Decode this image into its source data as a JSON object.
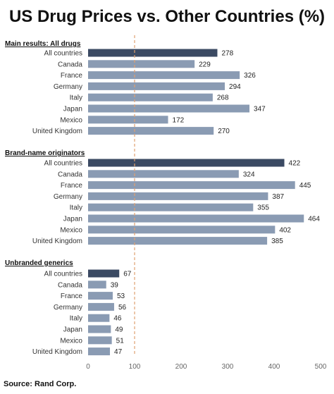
{
  "title": "US Drug Prices vs. Other Countries (%)",
  "source": "Source: Rand Corp.",
  "chart_data": {
    "type": "bar",
    "orientation": "horizontal",
    "title": "US Drug Prices vs. Other Countries (%)",
    "xlim": [
      0,
      500
    ],
    "xticks": [
      0,
      100,
      200,
      300,
      400,
      500
    ],
    "reference_line": 100,
    "grid": false,
    "legend": "none",
    "groups": [
      {
        "name": "Main results: All drugs",
        "categories": [
          "All countries",
          "Canada",
          "France",
          "Germany",
          "Italy",
          "Japan",
          "Mexico",
          "United Kingdom"
        ],
        "values": [
          278,
          229,
          326,
          294,
          268,
          347,
          172,
          270
        ]
      },
      {
        "name": "Brand-name originators",
        "categories": [
          "All countries",
          "Canada",
          "France",
          "Germany",
          "Italy",
          "Japan",
          "Mexico",
          "United Kingdom"
        ],
        "values": [
          422,
          324,
          445,
          387,
          355,
          464,
          402,
          385
        ]
      },
      {
        "name": "Unbranded generics",
        "categories": [
          "All countries",
          "Canada",
          "France",
          "Germany",
          "Italy",
          "Japan",
          "Mexico",
          "United Kingdom"
        ],
        "values": [
          67,
          39,
          53,
          56,
          46,
          49,
          51,
          47
        ]
      }
    ]
  },
  "colors": {
    "highlight_bar": "#3b4a63",
    "bar": "#8a9bb3",
    "reference_line": "#e0a070",
    "axis": "#c8c8c8"
  }
}
